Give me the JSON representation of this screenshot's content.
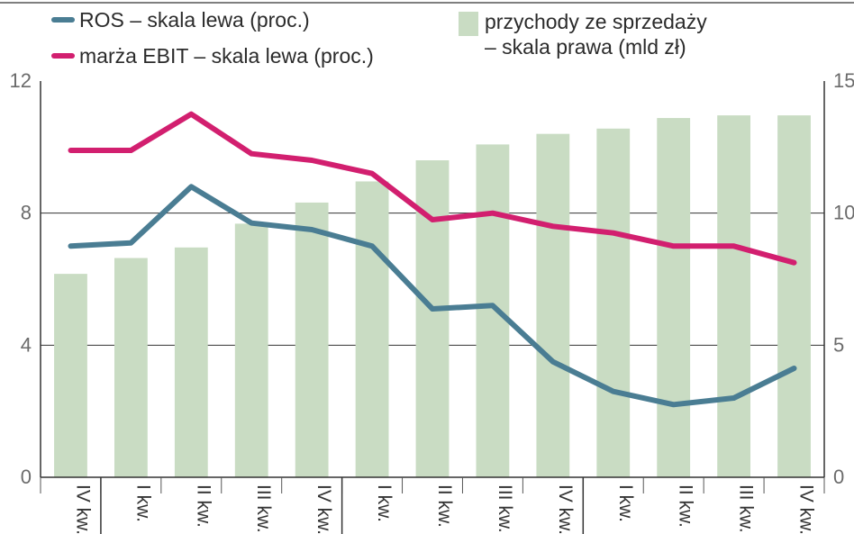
{
  "chart_data": {
    "type": "bar",
    "categories": [
      "IV kw.",
      "I kw.",
      "II kw.",
      "III kw.",
      "IV kw.",
      "I kw.",
      "II kw.",
      "III kw.",
      "IV kw.",
      "I kw.",
      "II kw.",
      "III kw.",
      "IV kw."
    ],
    "year_groups": [
      1,
      4,
      4,
      4
    ],
    "left_axis": {
      "ylim": [
        0,
        12
      ],
      "ticks": [
        0,
        4,
        8,
        12
      ]
    },
    "right_axis": {
      "ylim": [
        0,
        15
      ],
      "ticks": [
        0,
        5,
        10,
        15
      ]
    },
    "gridlines": [
      4,
      8
    ],
    "legend": {
      "ros": "ROS – skala lewa (proc.)",
      "ebit": "marża EBIT – skala lewa (proc.)",
      "revenue_line1": "przychody ze sprzedaży",
      "revenue_line2": "– skala prawa (mld zł)"
    },
    "series": [
      {
        "name": "przychody ze sprzedaży",
        "type": "bar",
        "axis": "right",
        "color": "#c9dcc3",
        "values": [
          7.7,
          8.3,
          8.7,
          9.6,
          10.4,
          11.2,
          12.0,
          12.6,
          13.0,
          13.2,
          13.6,
          13.7,
          13.7
        ]
      },
      {
        "name": "marża EBIT",
        "type": "line",
        "axis": "left",
        "color": "#d21f6f",
        "values": [
          9.9,
          9.9,
          11.0,
          9.8,
          9.6,
          9.2,
          7.8,
          8.0,
          7.6,
          7.4,
          7.0,
          7.0,
          6.5
        ]
      },
      {
        "name": "ROS",
        "type": "line",
        "axis": "left",
        "color": "#4a7d93",
        "values": [
          7.0,
          7.1,
          8.8,
          7.7,
          7.5,
          7.0,
          5.1,
          5.2,
          3.5,
          2.6,
          2.2,
          2.4,
          3.3
        ]
      }
    ]
  }
}
